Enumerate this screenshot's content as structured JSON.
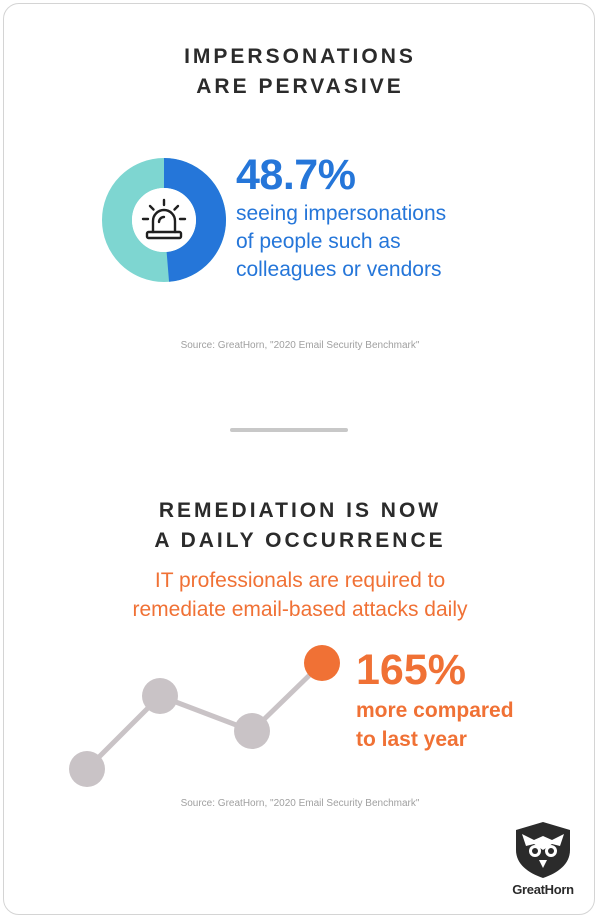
{
  "section1": {
    "heading_line1": "IMPERSONATIONS",
    "heading_line2": "ARE PERVASIVE",
    "stat_value": "48.7%",
    "stat_percent": 48.7,
    "desc_line1": "seeing impersonations",
    "desc_line2": "of people such as",
    "desc_line3": "colleagues or vendors",
    "icon": "siren-alarm-icon",
    "colors": {
      "accent": "#2576d9",
      "secondary": "#7ed6d1"
    },
    "source": "Source: GreatHorn, \"2020 Email Security Benchmark\""
  },
  "section2": {
    "heading_line1": "REMEDIATION IS NOW",
    "heading_line2": "A DAILY OCCURRENCE",
    "sub_line1": "IT professionals are required to",
    "sub_line2": "remediate email-based attacks daily",
    "stat_value": "165%",
    "desc_line1": "more compared",
    "desc_line2": "to last year",
    "trend_icon": "trend-line-icon",
    "colors": {
      "accent": "#f07135",
      "muted": "#c9c3c6"
    },
    "source": "Source: GreatHorn, \"2020 Email Security Benchmark\""
  },
  "brand": {
    "name": "GreatHorn",
    "icon": "owl-shield-icon"
  }
}
